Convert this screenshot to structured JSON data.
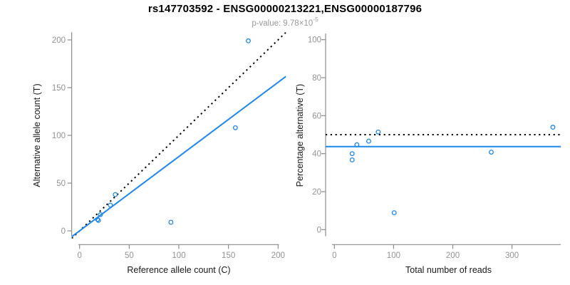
{
  "header": {
    "title": "rs147703592 - ENSG00000213221,ENSG00000187796",
    "pvalue_label": "p-value:",
    "pvalue_base": "9.78×10",
    "pvalue_exponent": "-5"
  },
  "colors": {
    "accent_blue": "#1F87E8",
    "line_black": "#000000",
    "axis_gray": "#8C8C8C",
    "tick_label_gray": "#929292",
    "subtitle_gray": "#9A9A9A"
  },
  "chart_data": [
    {
      "type": "scatter",
      "panel": "counts",
      "xlabel": "Reference allele count (C)",
      "ylabel": "Alternative allele count (T)",
      "xlim": [
        0,
        200
      ],
      "ylim": [
        0,
        200
      ],
      "xticks": [
        0,
        50,
        100,
        150,
        200
      ],
      "yticks": [
        0,
        50,
        100,
        150,
        200
      ],
      "grid": false,
      "points": [
        [
          18,
          12
        ],
        [
          19,
          11
        ],
        [
          21,
          17
        ],
        [
          31,
          27
        ],
        [
          36,
          38
        ],
        [
          92,
          9
        ],
        [
          157,
          108
        ],
        [
          170,
          199
        ]
      ],
      "lines": [
        {
          "name": "identity-line",
          "style": "dotted",
          "color": "#000000",
          "slope": 1,
          "intercept": 0
        },
        {
          "name": "fit-line",
          "style": "solid",
          "color": "#1F87E8",
          "slope": 0.778,
          "intercept": 0
        }
      ]
    },
    {
      "type": "scatter",
      "panel": "percentage",
      "xlabel": "Total number of reads",
      "ylabel": "Percentage alternative (T)",
      "xlim": [
        0,
        380
      ],
      "ylim": [
        0,
        100
      ],
      "xticks": [
        0,
        100,
        200,
        300
      ],
      "yticks": [
        0,
        20,
        40,
        60,
        80,
        100
      ],
      "grid": false,
      "points": [
        [
          30,
          36.7
        ],
        [
          30,
          40
        ],
        [
          38,
          44.7
        ],
        [
          58,
          46.6
        ],
        [
          74,
          51.4
        ],
        [
          101,
          8.9
        ],
        [
          265,
          40.8
        ],
        [
          369,
          53.9
        ]
      ],
      "lines": [
        {
          "name": "expected-50pct-line",
          "style": "dotted",
          "color": "#000000",
          "y": 50
        },
        {
          "name": "fit-line",
          "style": "solid",
          "color": "#1F87E8",
          "y": 43.7
        }
      ]
    }
  ]
}
